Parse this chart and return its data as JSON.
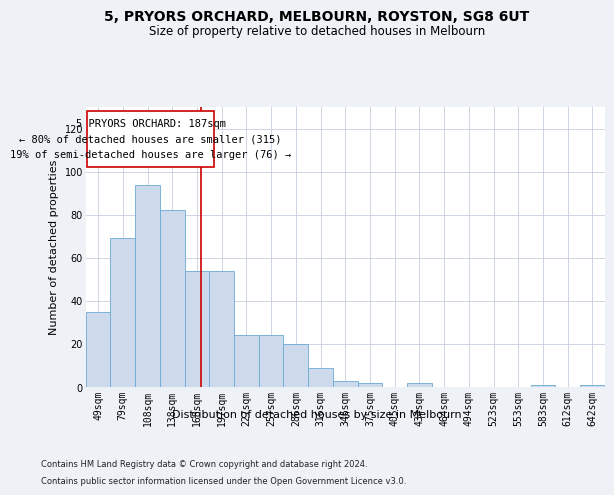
{
  "title": "5, PRYORS ORCHARD, MELBOURN, ROYSTON, SG8 6UT",
  "subtitle": "Size of property relative to detached houses in Melbourn",
  "xlabel": "Distribution of detached houses by size in Melbourn",
  "ylabel": "Number of detached properties",
  "bar_color": "#ccdaeb",
  "bar_edge_color": "#6aaad4",
  "bar_heights": [
    35,
    69,
    94,
    82,
    54,
    54,
    24,
    24,
    20,
    9,
    3,
    2,
    0,
    2,
    0,
    0,
    0,
    0,
    1,
    0,
    1
  ],
  "bin_labels": [
    "49sqm",
    "79sqm",
    "108sqm",
    "138sqm",
    "168sqm",
    "197sqm",
    "227sqm",
    "257sqm",
    "286sqm",
    "316sqm",
    "346sqm",
    "375sqm",
    "405sqm",
    "434sqm",
    "464sqm",
    "494sqm",
    "523sqm",
    "553sqm",
    "583sqm",
    "612sqm",
    "642sqm"
  ],
  "ylim": [
    0,
    130
  ],
  "yticks": [
    0,
    20,
    40,
    60,
    80,
    100,
    120
  ],
  "annotation_line1": "5 PRYORS ORCHARD: 187sqm",
  "annotation_line2": "← 80% of detached houses are smaller (315)",
  "annotation_line3": "19% of semi-detached houses are larger (76) →",
  "footer1": "Contains HM Land Registry data © Crown copyright and database right 2024.",
  "footer2": "Contains public sector information licensed under the Open Government Licence v3.0.",
  "background_color": "#eef2f7",
  "plot_bg_color": "#ffffff",
  "grid_color": "#c5cfde",
  "vline_color": "#cc0000",
  "box_edge_color": "#cc0000",
  "title_fontsize": 10,
  "subtitle_fontsize": 8.5,
  "axis_label_fontsize": 8,
  "tick_fontsize": 7,
  "annotation_fontsize": 7.5,
  "footer_fontsize": 6,
  "vline_x": 4.655
}
